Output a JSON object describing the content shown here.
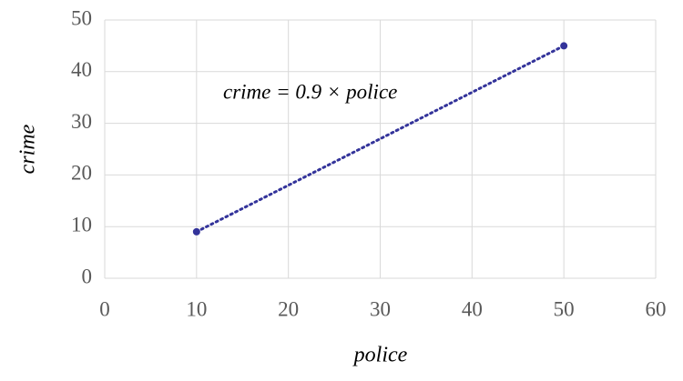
{
  "chart_data": {
    "type": "scatter",
    "x": [
      10,
      50
    ],
    "values": [
      9,
      45
    ],
    "color": "#33339a",
    "line": "dotted",
    "xlabel": "police",
    "ylabel": "crime",
    "annotation": "crime = 0.9 × police",
    "xlim": [
      0,
      60
    ],
    "xticks": [
      0,
      10,
      20,
      30,
      40,
      50,
      60
    ],
    "ylim": [
      0,
      50
    ],
    "yticks": [
      0,
      10,
      20,
      30,
      40,
      50
    ],
    "grid": true
  }
}
